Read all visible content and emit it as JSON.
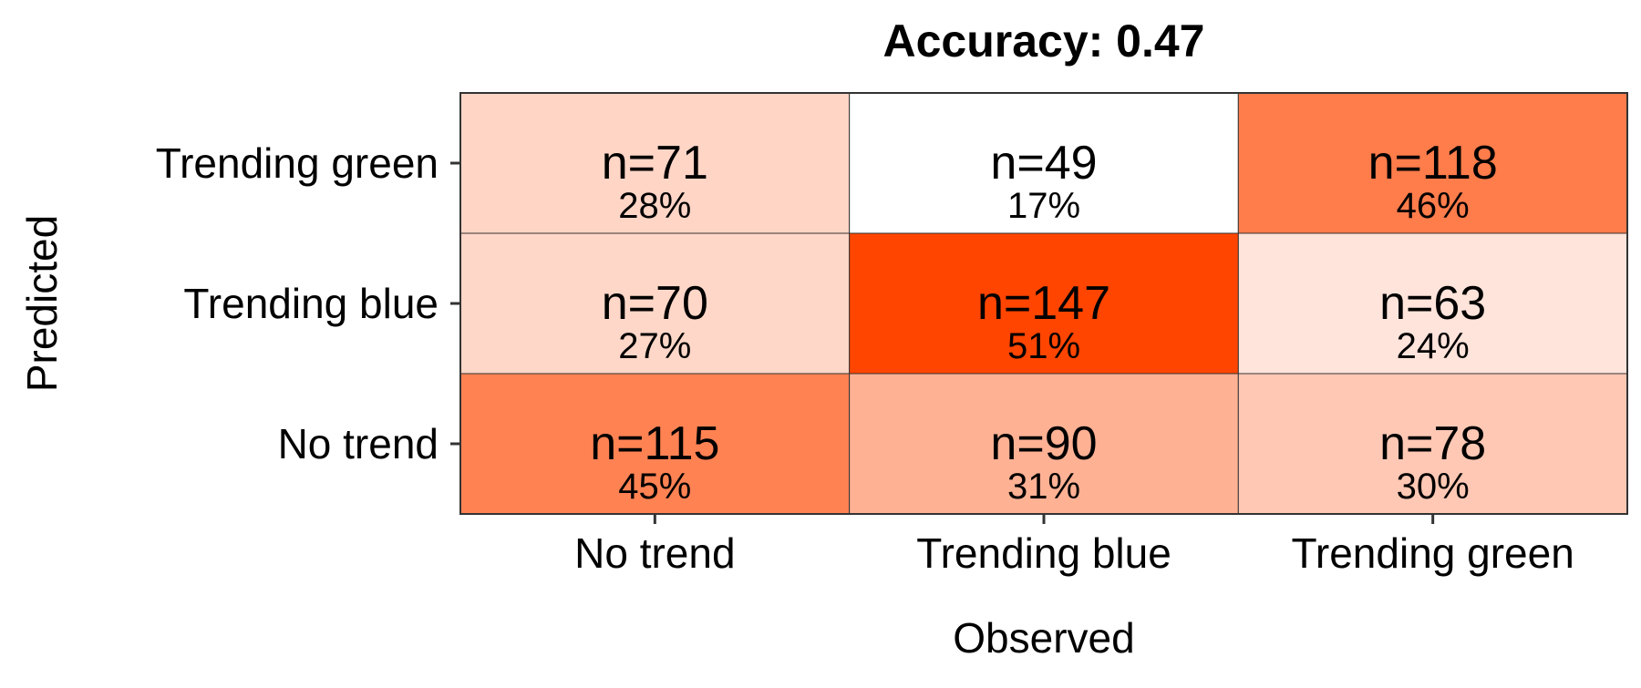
{
  "chart_data": {
    "type": "heatmap",
    "title": "Accuracy: 0.47",
    "xlabel": "Observed",
    "ylabel": "Predicted",
    "x_categories": [
      "No trend",
      "Trending blue",
      "Trending green"
    ],
    "y_categories": [
      "No trend",
      "Trending blue",
      "Trending green"
    ],
    "cells": [
      {
        "observed": "No trend",
        "predicted": "No trend",
        "count": 115,
        "count_label": "n=115",
        "percent": 45,
        "percent_label": "45%"
      },
      {
        "observed": "Trending blue",
        "predicted": "No trend",
        "count": 90,
        "count_label": "n=90",
        "percent": 31,
        "percent_label": "31%"
      },
      {
        "observed": "Trending green",
        "predicted": "No trend",
        "count": 78,
        "count_label": "n=78",
        "percent": 30,
        "percent_label": "30%"
      },
      {
        "observed": "No trend",
        "predicted": "Trending blue",
        "count": 70,
        "count_label": "n=70",
        "percent": 27,
        "percent_label": "27%"
      },
      {
        "observed": "Trending blue",
        "predicted": "Trending blue",
        "count": 147,
        "count_label": "n=147",
        "percent": 51,
        "percent_label": "51%"
      },
      {
        "observed": "Trending green",
        "predicted": "Trending blue",
        "count": 63,
        "count_label": "n=63",
        "percent": 24,
        "percent_label": "24%"
      },
      {
        "observed": "No trend",
        "predicted": "Trending green",
        "count": 71,
        "count_label": "n=71",
        "percent": 28,
        "percent_label": "28%"
      },
      {
        "observed": "Trending blue",
        "predicted": "Trending green",
        "count": 49,
        "count_label": "n=49",
        "percent": 17,
        "percent_label": "17%"
      },
      {
        "observed": "Trending green",
        "predicted": "Trending green",
        "count": 118,
        "count_label": "n=118",
        "percent": 46,
        "percent_label": "46%"
      }
    ],
    "color_scale": {
      "low": "#ffffff",
      "high": "#ff4500"
    },
    "legend": "none",
    "grid": false
  }
}
